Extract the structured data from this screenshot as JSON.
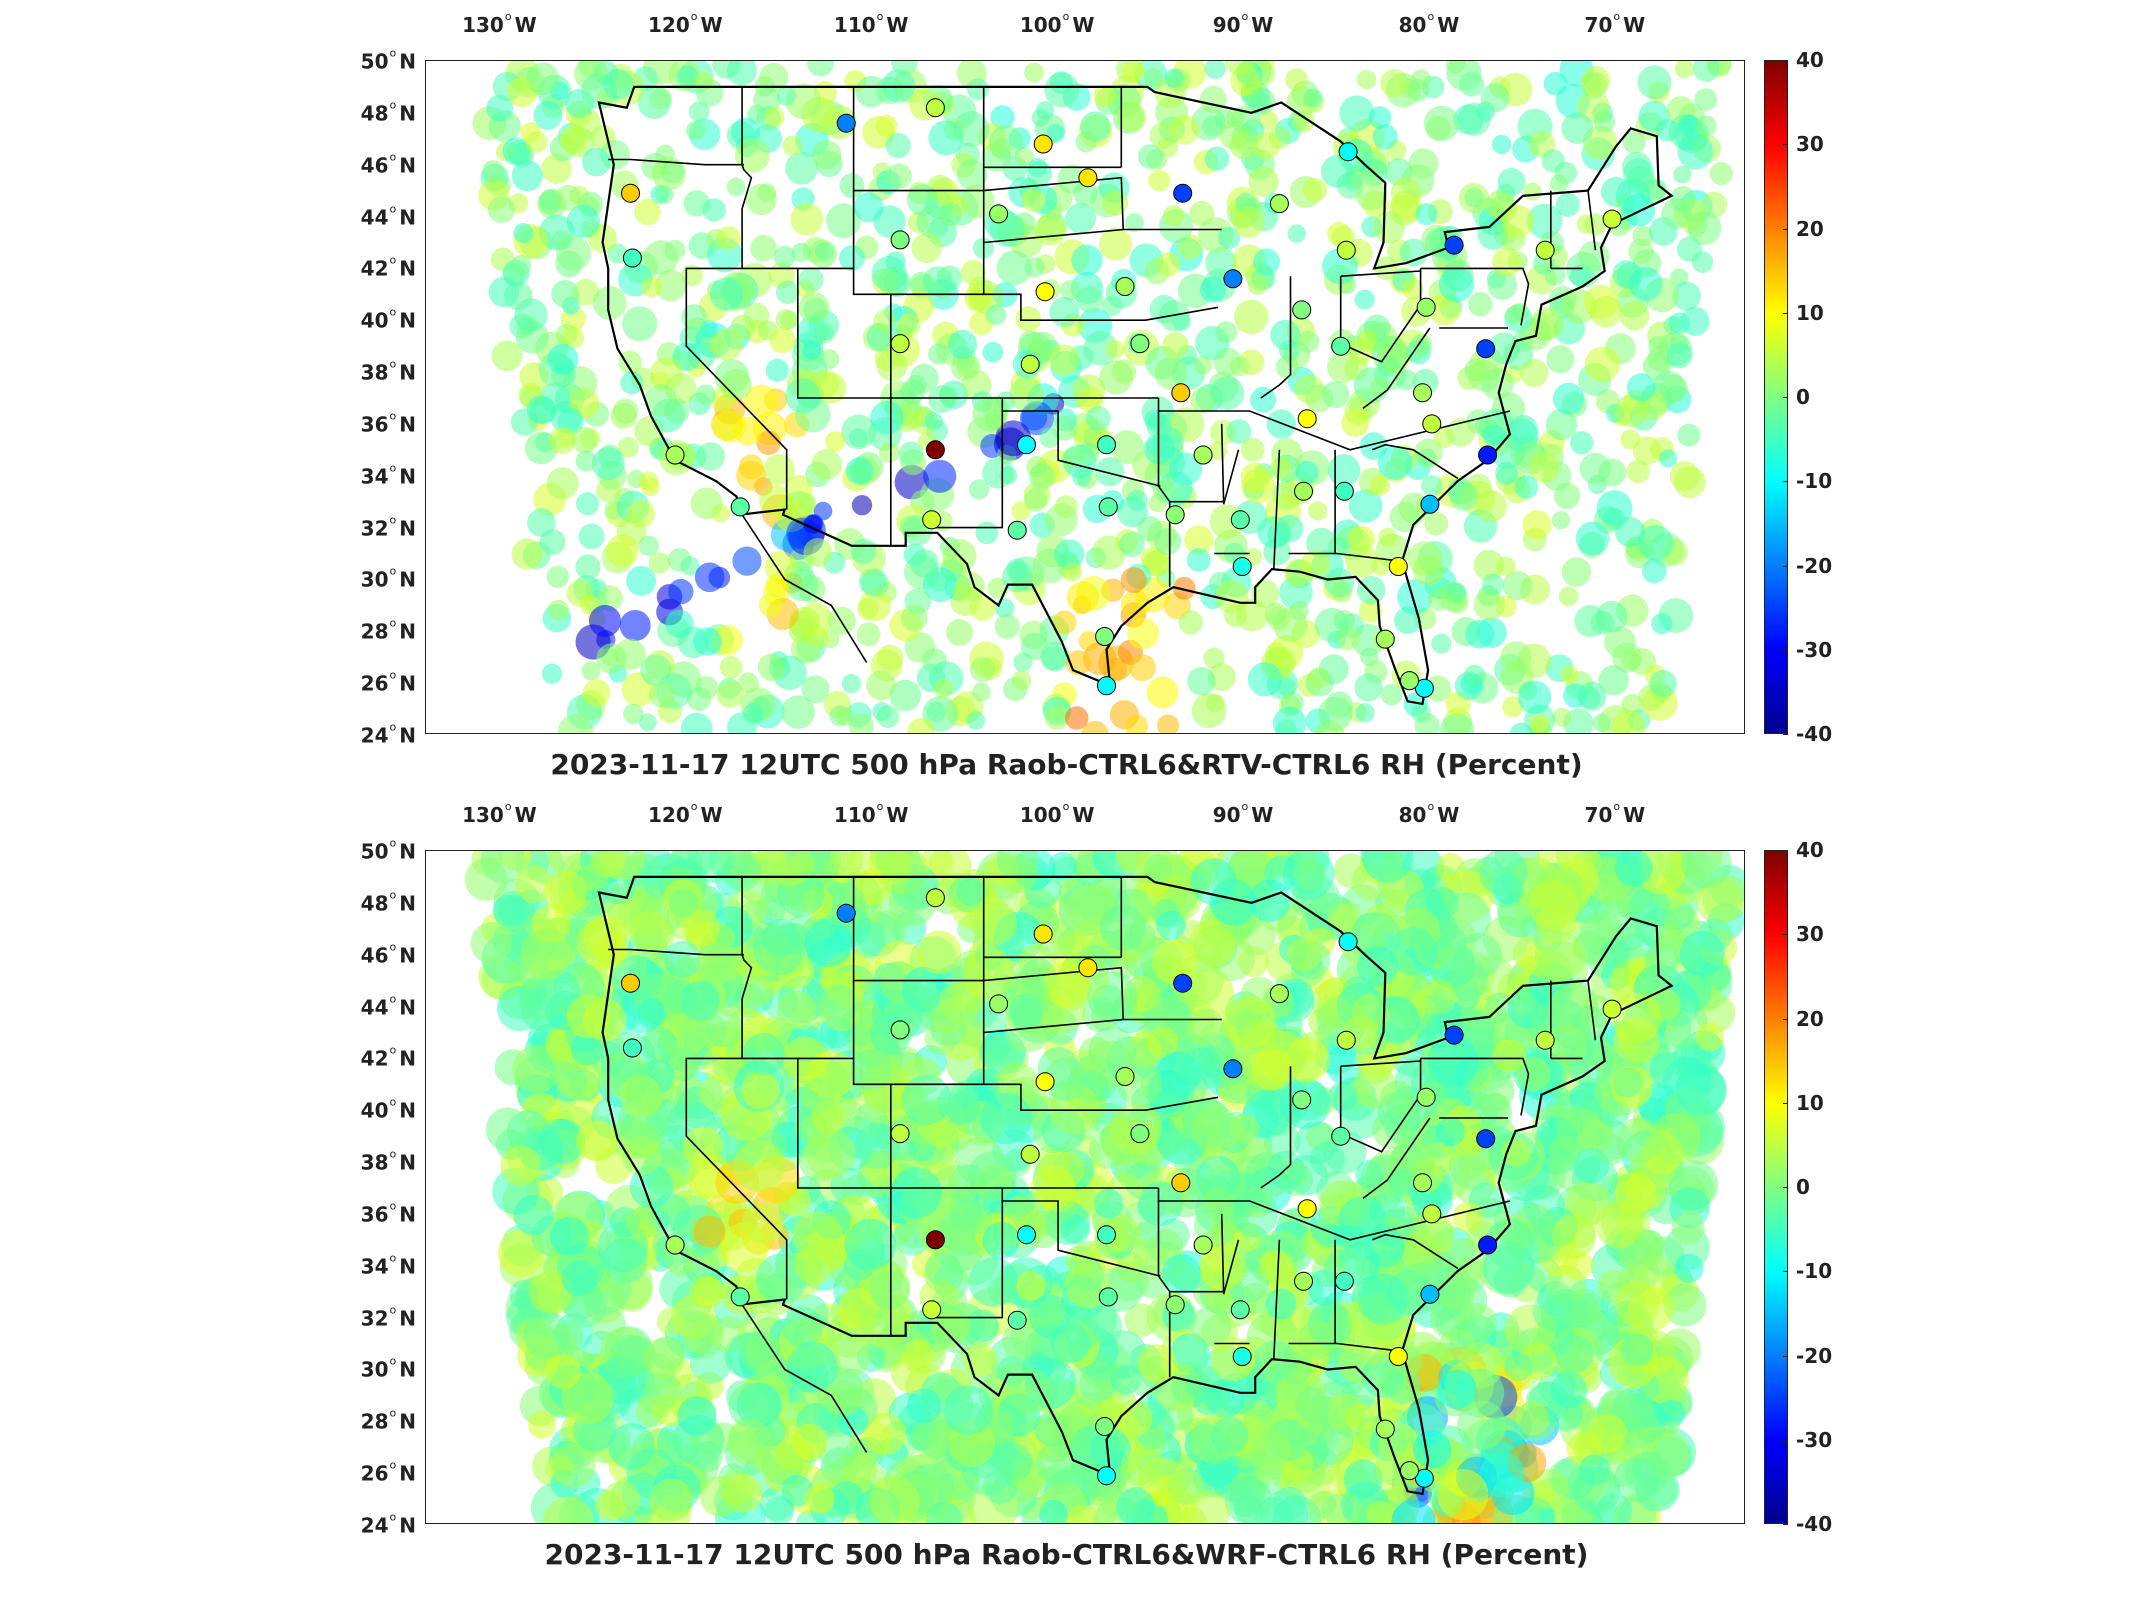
{
  "colorscale": {
    "min": -40,
    "max": 40,
    "ticks": [
      "40",
      "30",
      "20",
      "10",
      "0",
      "-10",
      "-20",
      "-30",
      "-40"
    ],
    "colors": [
      "#7f0000",
      "#ff0000",
      "#ff8000",
      "#ffff00",
      "#80ff80",
      "#00ffff",
      "#0080ff",
      "#0000ff",
      "#00008f"
    ]
  },
  "axes": {
    "lon_ticks": [
      {
        "deg": "130",
        "hemi": "W"
      },
      {
        "deg": "120",
        "hemi": "W"
      },
      {
        "deg": "110",
        "hemi": "W"
      },
      {
        "deg": "100",
        "hemi": "W"
      },
      {
        "deg": "90",
        "hemi": "W"
      },
      {
        "deg": "80",
        "hemi": "W"
      },
      {
        "deg": "70",
        "hemi": "W"
      }
    ],
    "lat_ticks": [
      {
        "deg": "50",
        "hemi": "N"
      },
      {
        "deg": "48",
        "hemi": "N"
      },
      {
        "deg": "46",
        "hemi": "N"
      },
      {
        "deg": "44",
        "hemi": "N"
      },
      {
        "deg": "42",
        "hemi": "N"
      },
      {
        "deg": "40",
        "hemi": "N"
      },
      {
        "deg": "38",
        "hemi": "N"
      },
      {
        "deg": "36",
        "hemi": "N"
      },
      {
        "deg": "34",
        "hemi": "N"
      },
      {
        "deg": "32",
        "hemi": "N"
      },
      {
        "deg": "30",
        "hemi": "N"
      },
      {
        "deg": "28",
        "hemi": "N"
      },
      {
        "deg": "26",
        "hemi": "N"
      },
      {
        "deg": "24",
        "hemi": "N"
      }
    ]
  },
  "panels": [
    {
      "id": "top",
      "caption": "2023-11-17 12UTC 500 hPa Raob-CTRL6&RTV-CTRL6 RH (Percent)"
    },
    {
      "id": "bottom",
      "caption": "2023-11-17 12UTC 500 hPa Raob-CTRL6&WRF-CTRL6 RH (Percent)"
    }
  ],
  "stations": [
    {
      "lat": 47.6,
      "lon": -111.4,
      "v": -20
    },
    {
      "lat": 48.2,
      "lon": -106.6,
      "v": 5
    },
    {
      "lat": 46.8,
      "lon": -100.8,
      "v": 12
    },
    {
      "lat": 45.5,
      "lon": -98.4,
      "v": 12
    },
    {
      "lat": 44.9,
      "lon": -93.3,
      "v": -25
    },
    {
      "lat": 46.5,
      "lon": -84.4,
      "v": -10
    },
    {
      "lat": 44.9,
      "lon": -123.0,
      "v": 14
    },
    {
      "lat": 42.4,
      "lon": -122.9,
      "v": -5
    },
    {
      "lat": 43.1,
      "lon": -108.5,
      "v": 0
    },
    {
      "lat": 44.1,
      "lon": -103.2,
      "v": 2
    },
    {
      "lat": 41.1,
      "lon": -100.7,
      "v": 10
    },
    {
      "lat": 41.3,
      "lon": -96.4,
      "v": 3
    },
    {
      "lat": 44.5,
      "lon": -88.1,
      "v": 3
    },
    {
      "lat": 42.7,
      "lon": -84.5,
      "v": 5
    },
    {
      "lat": 42.9,
      "lon": -78.7,
      "v": -25
    },
    {
      "lat": 42.7,
      "lon": -73.8,
      "v": 5
    },
    {
      "lat": 43.9,
      "lon": -70.2,
      "v": 6
    },
    {
      "lat": 41.6,
      "lon": -90.6,
      "v": -20
    },
    {
      "lat": 40.4,
      "lon": -86.9,
      "v": 0
    },
    {
      "lat": 40.5,
      "lon": -80.2,
      "v": 2
    },
    {
      "lat": 39.1,
      "lon": -108.5,
      "v": 5
    },
    {
      "lat": 39.0,
      "lon": -84.8,
      "v": -3
    },
    {
      "lat": 38.9,
      "lon": -77.0,
      "v": -25
    },
    {
      "lat": 38.3,
      "lon": -101.5,
      "v": 5
    },
    {
      "lat": 39.1,
      "lon": -95.6,
      "v": 0
    },
    {
      "lat": 37.2,
      "lon": -93.4,
      "v": 14
    },
    {
      "lat": 37.2,
      "lon": -80.4,
      "v": 3
    },
    {
      "lat": 36.2,
      "lon": -86.6,
      "v": 10
    },
    {
      "lat": 36.0,
      "lon": -79.9,
      "v": 5
    },
    {
      "lat": 35.0,
      "lon": -106.6,
      "v": 40
    },
    {
      "lat": 35.2,
      "lon": -101.7,
      "v": -10
    },
    {
      "lat": 35.2,
      "lon": -97.4,
      "v": -5
    },
    {
      "lat": 34.8,
      "lon": -92.2,
      "v": 3
    },
    {
      "lat": 34.8,
      "lon": -76.9,
      "v": -28
    },
    {
      "lat": 34.8,
      "lon": -120.6,
      "v": 3
    },
    {
      "lat": 32.8,
      "lon": -117.1,
      "v": -3
    },
    {
      "lat": 32.3,
      "lon": -106.8,
      "v": 6
    },
    {
      "lat": 31.9,
      "lon": -102.2,
      "v": -3
    },
    {
      "lat": 32.8,
      "lon": -97.3,
      "v": -3
    },
    {
      "lat": 32.3,
      "lon": -90.2,
      "v": -3
    },
    {
      "lat": 32.5,
      "lon": -93.7,
      "v": 1
    },
    {
      "lat": 33.4,
      "lon": -86.8,
      "v": 3
    },
    {
      "lat": 33.4,
      "lon": -84.6,
      "v": -5
    },
    {
      "lat": 32.9,
      "lon": -80.0,
      "v": -15
    },
    {
      "lat": 30.5,
      "lon": -90.1,
      "v": -8
    },
    {
      "lat": 30.5,
      "lon": -81.7,
      "v": 10
    },
    {
      "lat": 27.8,
      "lon": -97.5,
      "v": 0
    },
    {
      "lat": 25.9,
      "lon": -97.4,
      "v": -10
    },
    {
      "lat": 25.8,
      "lon": -80.3,
      "v": -10
    },
    {
      "lat": 27.7,
      "lon": -82.4,
      "v": 3
    },
    {
      "lat": 26.1,
      "lon": -81.1,
      "v": 2
    }
  ]
}
